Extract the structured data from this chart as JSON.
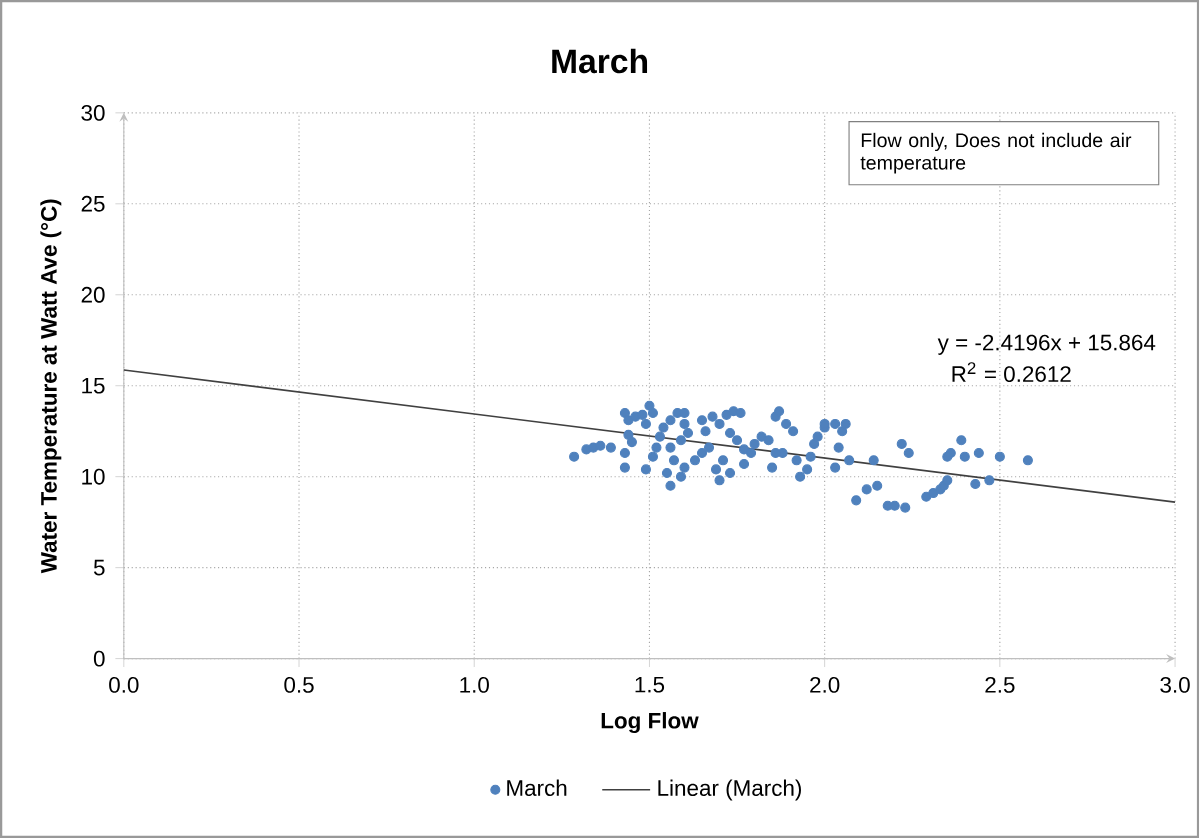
{
  "chart_data": {
    "type": "scatter",
    "title": "March",
    "xlabel": "Log Flow",
    "ylabel": "Water Temperature at Watt Ave (°C)",
    "xlim": [
      0,
      3
    ],
    "ylim": [
      0,
      30
    ],
    "xticks": [
      {
        "value": 0,
        "label": "0.0"
      },
      {
        "value": 0.5,
        "label": "0.5"
      },
      {
        "value": 1,
        "label": "1.0"
      },
      {
        "value": 1.5,
        "label": "1.5"
      },
      {
        "value": 2,
        "label": "2.0"
      },
      {
        "value": 2.5,
        "label": "2.5"
      },
      {
        "value": 3,
        "label": "3.0"
      }
    ],
    "yticks": [
      0,
      5,
      10,
      15,
      20,
      25,
      30
    ],
    "grid": true,
    "legend": "bottom",
    "annotations": [
      "Flow only, Does not include air temperature",
      "y = -2.4196x + 15.864",
      "R$^{2}$ = 0.2612"
    ],
    "series": [
      {
        "name": "March",
        "color": "#4f81bd",
        "marker": "circle",
        "x": [
          1.285,
          1.32,
          1.34,
          1.36,
          1.39,
          1.43,
          1.44,
          1.46,
          1.48,
          1.5,
          1.51,
          1.49,
          1.44,
          1.45,
          1.43,
          1.43,
          1.49,
          1.51,
          1.52,
          1.53,
          1.54,
          1.56,
          1.58,
          1.6,
          1.6,
          1.61,
          1.59,
          1.56,
          1.57,
          1.55,
          1.56,
          1.59,
          1.6,
          1.63,
          1.65,
          1.67,
          1.66,
          1.65,
          1.68,
          1.7,
          1.72,
          1.74,
          1.76,
          1.73,
          1.75,
          1.77,
          1.71,
          1.7,
          1.69,
          1.73,
          1.77,
          1.79,
          1.8,
          1.82,
          1.84,
          1.86,
          1.87,
          1.89,
          1.91,
          1.88,
          1.86,
          1.85,
          1.92,
          1.93,
          1.95,
          1.96,
          1.97,
          1.98,
          2.0,
          2.0,
          2.03,
          2.05,
          2.06,
          2.04,
          2.03,
          2.07,
          2.09,
          2.12,
          2.14,
          2.15,
          2.18,
          2.2,
          2.23,
          2.22,
          2.24,
          2.29,
          2.31,
          2.33,
          2.34,
          2.35,
          2.36,
          2.35,
          2.39,
          2.4,
          2.44,
          2.43,
          2.5,
          2.58,
          2.47
        ],
        "values": [
          11.1,
          11.5,
          11.6,
          11.7,
          11.6,
          13.5,
          13.1,
          13.3,
          13.4,
          13.9,
          13.5,
          12.9,
          12.3,
          11.9,
          11.3,
          10.5,
          10.4,
          11.1,
          11.6,
          12.2,
          12.7,
          13.1,
          13.5,
          13.5,
          12.9,
          12.4,
          12.0,
          11.6,
          10.9,
          10.2,
          9.5,
          10.0,
          10.5,
          10.9,
          11.3,
          11.6,
          12.5,
          13.1,
          13.3,
          12.9,
          13.4,
          13.6,
          13.5,
          12.4,
          12.0,
          11.5,
          10.9,
          9.8,
          10.4,
          10.2,
          10.7,
          11.3,
          11.8,
          12.2,
          12.0,
          13.3,
          13.6,
          12.9,
          12.5,
          11.3,
          11.3,
          10.5,
          10.9,
          10.0,
          10.4,
          11.1,
          11.8,
          12.2,
          12.7,
          12.9,
          12.9,
          12.5,
          12.9,
          11.6,
          10.5,
          10.9,
          8.7,
          9.3,
          10.9,
          9.5,
          8.4,
          8.4,
          8.3,
          11.8,
          11.3,
          8.9,
          9.1,
          9.3,
          9.5,
          9.8,
          11.3,
          11.1,
          12.0,
          11.1,
          11.3,
          9.6,
          11.1,
          10.9,
          9.8
        ]
      },
      {
        "name": "Linear (March)",
        "type": "line",
        "color": "#404040",
        "line_style": "solid",
        "marker": "none",
        "x": [
          0,
          3
        ],
        "values": [
          15.864,
          8.605
        ]
      }
    ]
  }
}
